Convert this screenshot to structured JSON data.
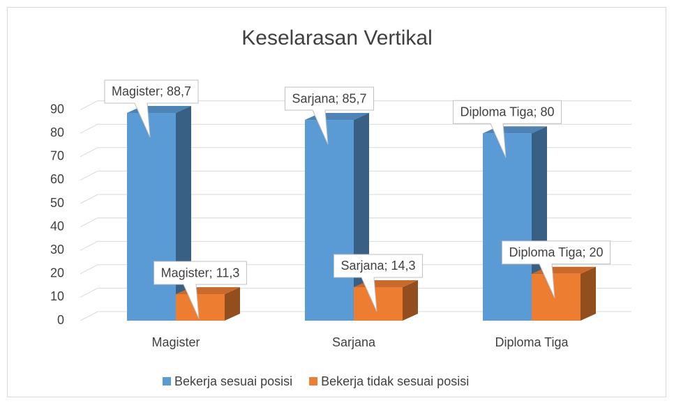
{
  "chart_data": {
    "type": "bar",
    "title": "Keselarasan Vertikal",
    "categories": [
      "Magister",
      "Sarjana",
      "Diploma Tiga"
    ],
    "series": [
      {
        "name": "Bekerja sesuai posisi",
        "color": "#5b9bd5",
        "values": [
          88.7,
          85.7,
          80
        ],
        "value_labels": [
          "Magister; 88,7",
          "Sarjana; 85,7",
          "Diploma Tiga; 80"
        ]
      },
      {
        "name": "Bekerja tidak sesuai posisi",
        "color": "#ed7d31",
        "values": [
          11.3,
          14.3,
          20
        ],
        "value_labels": [
          "Magister; 11,3",
          "Sarjana; 14,3",
          "Diploma Tiga; 20"
        ]
      }
    ],
    "ylim": [
      0,
      100
    ],
    "yticks": [
      0,
      10,
      20,
      30,
      40,
      50,
      60,
      70,
      80,
      90
    ],
    "grid": true,
    "legend": "bottom"
  }
}
